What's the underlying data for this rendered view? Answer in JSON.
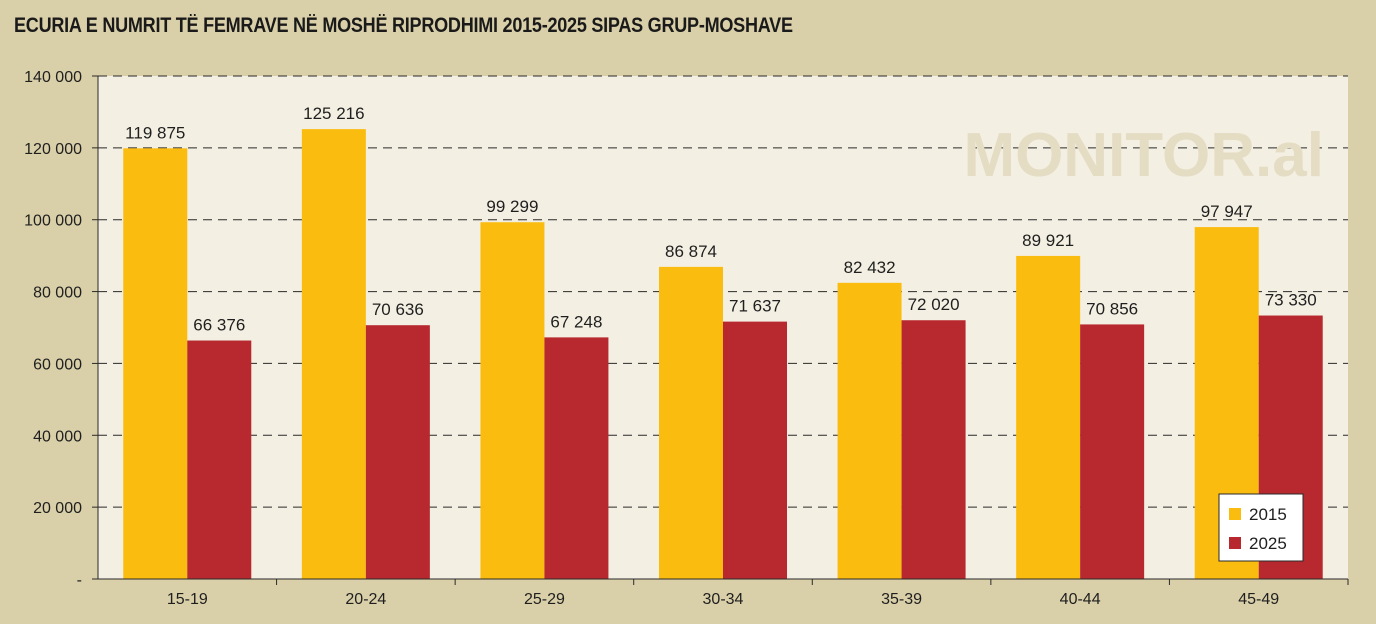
{
  "chart_data": {
    "type": "bar",
    "title": "ECURIA E NUMRIT TË FEMRAVE NË MOSHË RIPRODHIMI 2015-2025 SIPAS GRUP-MOSHAVE",
    "categories": [
      "15-19",
      "20-24",
      "25-29",
      "30-34",
      "35-39",
      "40-44",
      "45-49"
    ],
    "series": [
      {
        "name": "2015",
        "color": "#fbbc10",
        "values": [
          119875,
          125216,
          99299,
          86874,
          82432,
          89921,
          97947
        ],
        "labels": [
          "119 875",
          "125 216",
          "99 299",
          "86 874",
          "82 432",
          "89 921",
          "97 947"
        ]
      },
      {
        "name": "2025",
        "color": "#b8282f",
        "values": [
          66376,
          70636,
          67248,
          71637,
          72020,
          70856,
          73330
        ],
        "labels": [
          "66 376",
          "70 636",
          "67 248",
          "71 637",
          "72 020",
          "70 856",
          "73 330"
        ]
      }
    ],
    "ylim": [
      0,
      140000
    ],
    "yticks": [
      0,
      20000,
      40000,
      60000,
      80000,
      100000,
      120000,
      140000
    ],
    "ytick_labels": [
      "-",
      "20 000",
      "40 000",
      "60 000",
      "80 000",
      "100 000",
      "120 000",
      "140 000"
    ],
    "xlabel": "",
    "ylabel": "",
    "grid": true,
    "legend_position": "bottom-right"
  },
  "watermark": "MONITOR.al"
}
